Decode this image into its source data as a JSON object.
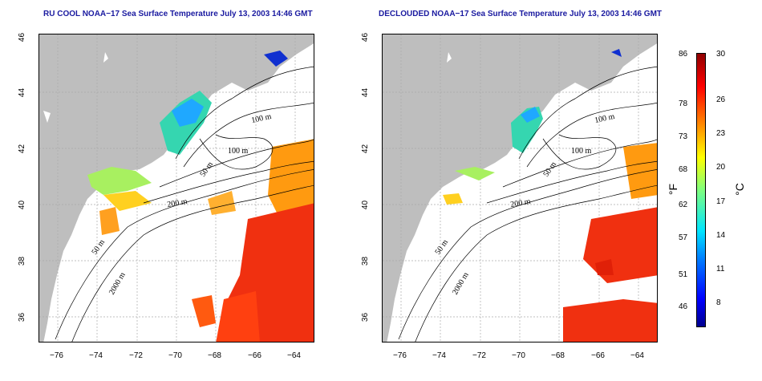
{
  "panels": [
    {
      "title": "RU COOL NOAA−17 Sea Surface Temperature July 13, 2003 14:46 GMT"
    },
    {
      "title": "DECLOUDED NOAA−17 Sea Surface Temperature July 13, 2003 14:46 GMT"
    }
  ],
  "axes": {
    "lat_ticks": [
      "46",
      "44",
      "42",
      "40",
      "38",
      "36"
    ],
    "lon_ticks": [
      "−76",
      "−74",
      "−72",
      "−70",
      "−68",
      "−66",
      "−64"
    ]
  },
  "contour_labels": {
    "left": [
      "100 m",
      "100 m",
      "50 m",
      "200 m",
      "50 m",
      "2000 m"
    ],
    "right": [
      "100 m",
      "100 m",
      "50 m",
      "200 m",
      "50 m",
      "2000 m"
    ]
  },
  "colorbar": {
    "fahrenheit_ticks": [
      "86",
      "78",
      "73",
      "68",
      "62",
      "57",
      "51",
      "46"
    ],
    "celsius_ticks": [
      "30",
      "26",
      "23",
      "20",
      "17",
      "14",
      "11",
      "8"
    ],
    "fahrenheit_unit": "°F",
    "celsius_unit": "°C",
    "colors": [
      "#00008f",
      "#0000ff",
      "#0080ff",
      "#00e5ff",
      "#7fff7f",
      "#ffff00",
      "#ff8000",
      "#ff0000",
      "#8f0000"
    ]
  }
}
